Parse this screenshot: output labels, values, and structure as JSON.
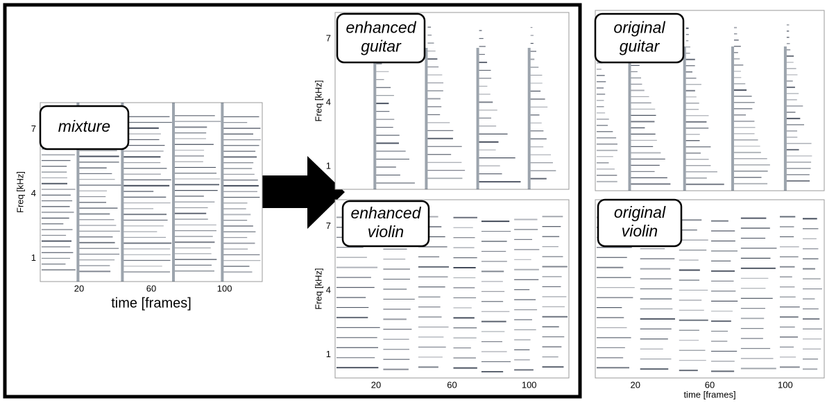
{
  "panels": [
    {
      "label_lines": [
        "mixture"
      ],
      "y_axis_label": "Freq [kHz]",
      "y_ticks": [
        "7",
        "4",
        "1"
      ],
      "x_ticks": [
        "20",
        "60",
        "100"
      ],
      "x_axis_label": "time [frames]"
    },
    {
      "label_lines": [
        "enhanced",
        "guitar"
      ],
      "y_axis_label": "Freq [kHz]",
      "y_ticks": [
        "7",
        "4",
        "1"
      ]
    },
    {
      "label_lines": [
        "enhanced",
        "violin"
      ],
      "y_axis_label": "Freq [kHz]",
      "y_ticks": [
        "7",
        "4",
        "1"
      ],
      "x_ticks": [
        "20",
        "60",
        "100"
      ]
    },
    {
      "label_lines": [
        "original",
        "guitar"
      ]
    },
    {
      "label_lines": [
        "original",
        "violin"
      ],
      "x_ticks": [
        "20",
        "60",
        "100"
      ],
      "x_axis_label": "time [frames]"
    }
  ]
}
